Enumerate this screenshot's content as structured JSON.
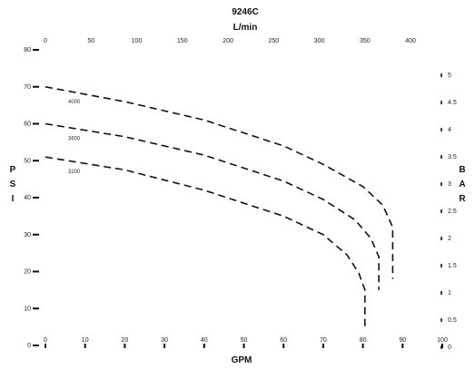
{
  "chart_data": {
    "type": "line",
    "title": "9246C",
    "top_axis_label": "L/min",
    "xlabel": "GPM",
    "ylabel_left": "P S I",
    "ylabel_right": "B A R",
    "xlim": [
      0,
      100
    ],
    "ylim": [
      0,
      80
    ],
    "x_ticks": [
      "0",
      "10",
      "20",
      "30",
      "40",
      "50",
      "60",
      "70",
      "80",
      "90",
      "100"
    ],
    "y_ticks": [
      "0",
      "10",
      "20",
      "30",
      "40",
      "50",
      "60",
      "70",
      "80"
    ],
    "top_ticks": [
      "0",
      "50",
      "100",
      "150",
      "200",
      "250",
      "300",
      "350",
      "400"
    ],
    "right_ticks": [
      "0",
      "0.5",
      "1",
      "1.5",
      "2",
      "2.5",
      "3",
      "3.5",
      "4",
      "4.5",
      "5"
    ],
    "grid": false,
    "series": [
      {
        "name": "4000",
        "x": [
          0,
          20,
          40,
          60,
          70,
          80,
          85,
          87.5,
          87.5
        ],
        "y": [
          70,
          66,
          61,
          54,
          49,
          43,
          38,
          32,
          18
        ]
      },
      {
        "name": "3600",
        "x": [
          0,
          20,
          40,
          60,
          70,
          78,
          82,
          84,
          84
        ],
        "y": [
          60,
          56.5,
          51.5,
          44.5,
          39.5,
          34,
          29,
          24,
          15
        ]
      },
      {
        "name": "3200",
        "x": [
          0,
          20,
          40,
          60,
          70,
          76,
          79,
          80.5,
          80.5
        ],
        "y": [
          51,
          47.5,
          42,
          35,
          30,
          24.5,
          19.5,
          15,
          5
        ]
      }
    ]
  }
}
